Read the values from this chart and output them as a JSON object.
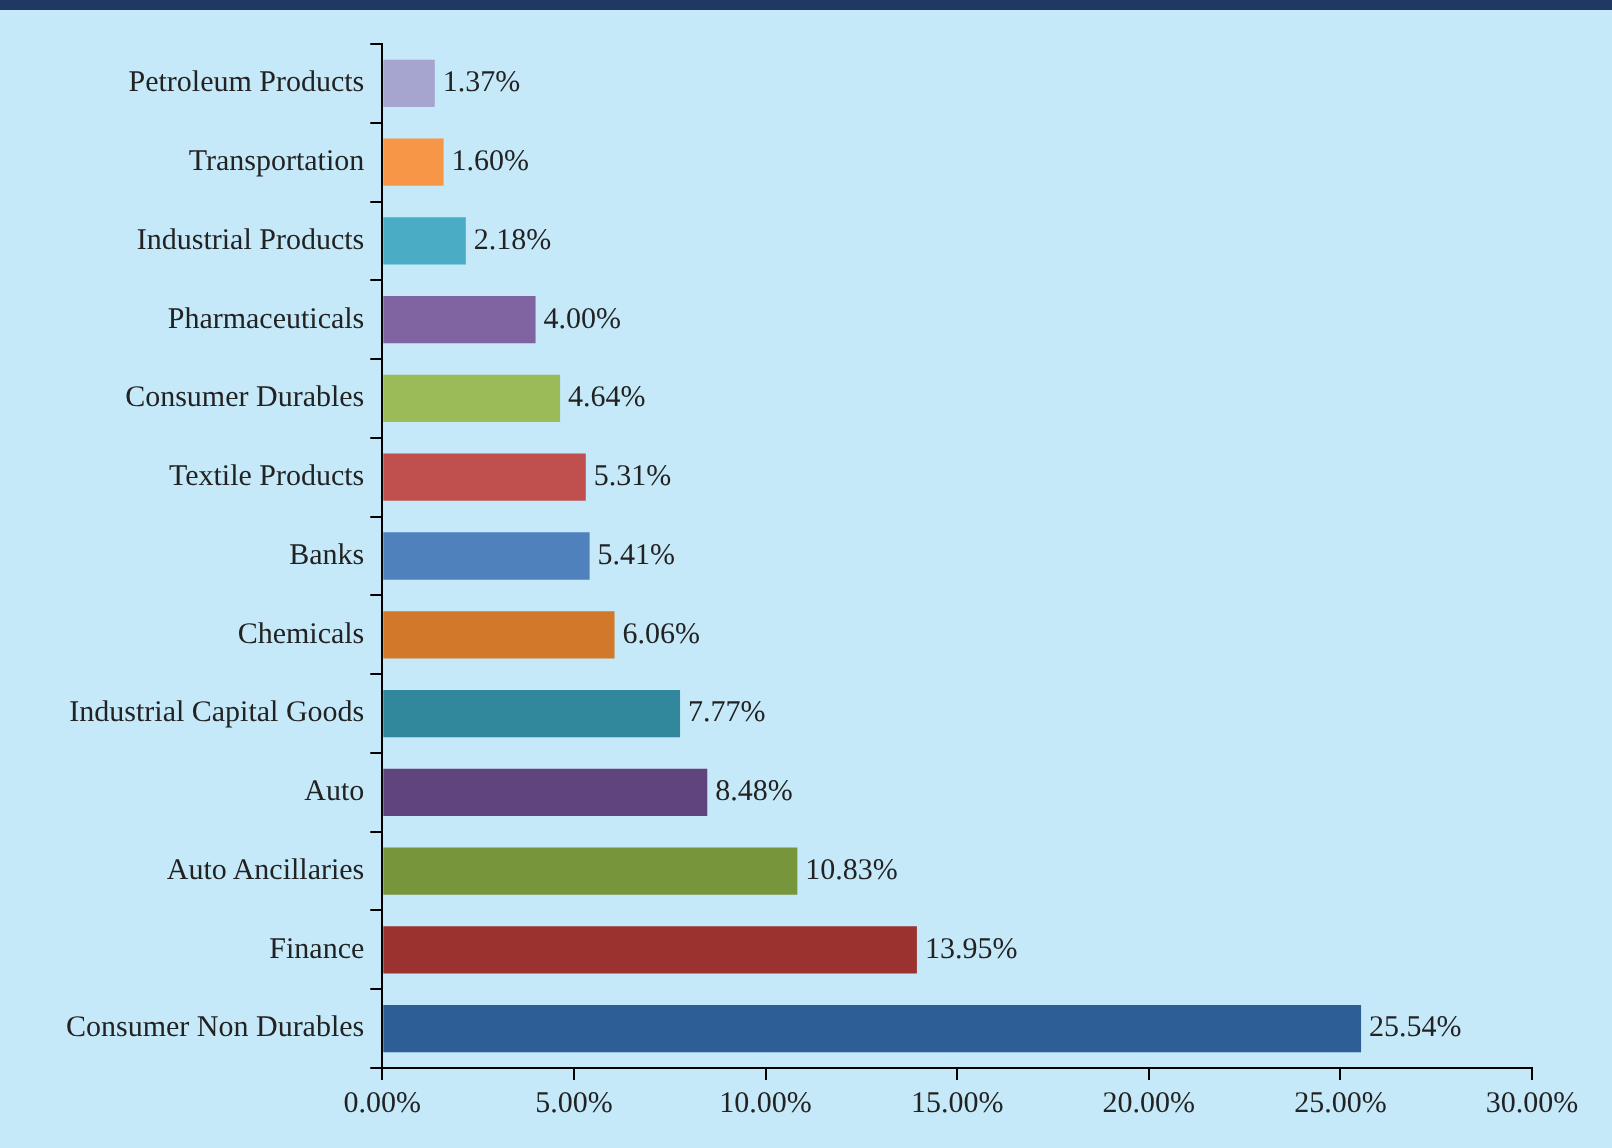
{
  "chart_data": {
    "type": "bar",
    "orientation": "horizontal",
    "categories": [
      "Petroleum Products",
      "Transportation",
      "Industrial Products",
      "Pharmaceuticals",
      "Consumer Durables",
      "Textile Products",
      "Banks",
      "Chemicals",
      "Industrial Capital Goods",
      "Auto",
      "Auto Ancillaries",
      "Finance",
      "Consumer Non Durables"
    ],
    "values": [
      1.37,
      1.6,
      2.18,
      4.0,
      4.64,
      5.31,
      5.41,
      6.06,
      7.77,
      8.48,
      10.83,
      13.95,
      25.54
    ],
    "colors": [
      "#a5a5d0",
      "#f79646",
      "#4bacc6",
      "#8064a2",
      "#9bbb59",
      "#c0504d",
      "#4f81bd",
      "#d2782a",
      "#31879c",
      "#60447e",
      "#77963c",
      "#9c322f",
      "#2e5e96"
    ],
    "value_labels": [
      "1.37%",
      "1.60%",
      "2.18%",
      "4.00%",
      "4.64%",
      "5.31%",
      "5.41%",
      "6.06%",
      "7.77%",
      "8.48%",
      "10.83%",
      "13.95%",
      "25.54%"
    ],
    "xlim": [
      0,
      30
    ],
    "xticks": [
      {
        "value": 0,
        "label": "0.00%"
      },
      {
        "value": 5,
        "label": "5.00%"
      },
      {
        "value": 10,
        "label": "10.00%"
      },
      {
        "value": 15,
        "label": "15.00%"
      },
      {
        "value": 20,
        "label": "20.00%"
      },
      {
        "value": 25,
        "label": "25.00%"
      },
      {
        "value": 30,
        "label": "30.00%"
      }
    ],
    "grid": false,
    "legend": false
  }
}
